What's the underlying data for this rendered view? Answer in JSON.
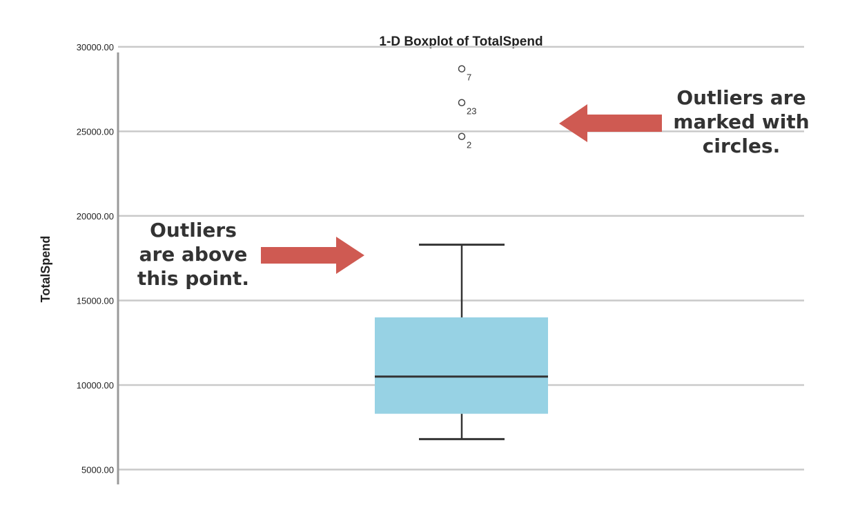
{
  "chart_data": {
    "type": "boxplot",
    "title": "1-D Boxplot of TotalSpend",
    "xlabel": "",
    "ylabel": "TotalSpend",
    "ylim": [
      4000,
      31300
    ],
    "grid": true,
    "yticks": [
      5000,
      10000,
      15000,
      20000,
      25000,
      30000
    ],
    "ytick_labels": [
      "5000.00",
      "10000.00",
      "15000.00",
      "20000.00",
      "25000.00",
      "30000.00"
    ],
    "box": {
      "whisker_low": 6800,
      "q1": 8300,
      "median": 10500,
      "q3": 14000,
      "whisker_high": 18300,
      "color": "#97d2e4"
    },
    "outliers": [
      {
        "value": 28700,
        "label": "7"
      },
      {
        "value": 26700,
        "label": "23"
      },
      {
        "value": 24700,
        "label": "2"
      }
    ],
    "annotations": [
      {
        "id": "above",
        "lines": [
          "Outliers",
          "are above",
          "this point."
        ]
      },
      {
        "id": "circles",
        "lines": [
          "Outliers are",
          "marked with",
          "circles."
        ]
      }
    ],
    "arrow_color": "#cf5a52"
  }
}
